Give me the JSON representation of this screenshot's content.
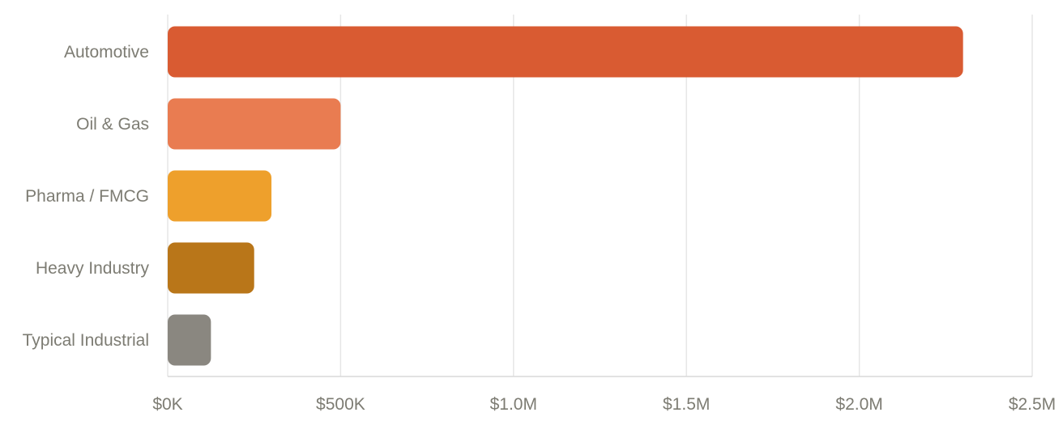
{
  "chart_data": {
    "type": "bar",
    "orientation": "horizontal",
    "title": "",
    "xlabel": "",
    "ylabel": "",
    "categories": [
      "Automotive",
      "Oil & Gas",
      "Pharma / FMCG",
      "Heavy Industry",
      "Typical Industrial"
    ],
    "values": [
      2300000,
      500000,
      300000,
      250000,
      125000
    ],
    "colors": [
      "#d95b32",
      "#e97c51",
      "#eea02c",
      "#b97619",
      "#8a8780"
    ],
    "xlim": [
      0,
      2500000
    ],
    "x_ticks": [
      0,
      500000,
      1000000,
      1500000,
      2000000,
      2500000
    ],
    "x_tick_labels": [
      "$0K",
      "$500K",
      "$1.0M",
      "$1.5M",
      "$2.0M",
      "$2.5M"
    ],
    "grid": "vertical",
    "legend": "none"
  }
}
